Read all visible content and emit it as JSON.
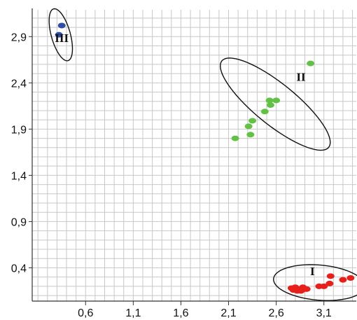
{
  "chart_data": {
    "type": "scatter",
    "title": "",
    "xlabel": "",
    "ylabel": "",
    "xlim": [
      0.04,
      3.44
    ],
    "ylim": [
      0.04,
      3.19
    ],
    "x_ticks": [
      "0,6",
      "1,1",
      "1,6",
      "2,1",
      "2,6",
      "3,1"
    ],
    "x_tick_values": [
      0.6,
      1.1,
      1.6,
      2.1,
      2.6,
      3.1
    ],
    "y_ticks": [
      "0,4",
      "0,9",
      "1,4",
      "1,9",
      "2,4",
      "2,9"
    ],
    "y_tick_values": [
      0.4,
      0.9,
      1.4,
      1.9,
      2.4,
      2.9
    ],
    "minor_grid_step": 0.1,
    "grid": true,
    "series": [
      {
        "name": "I",
        "color": "#e8201c",
        "points": [
          [
            2.76,
            0.18
          ],
          [
            2.78,
            0.16
          ],
          [
            2.8,
            0.19
          ],
          [
            2.82,
            0.15
          ],
          [
            2.84,
            0.17
          ],
          [
            2.86,
            0.15
          ],
          [
            2.88,
            0.19
          ],
          [
            2.9,
            0.17
          ],
          [
            2.92,
            0.17
          ],
          [
            3.05,
            0.2
          ],
          [
            3.1,
            0.2
          ],
          [
            3.16,
            0.23
          ],
          [
            3.17,
            0.31
          ],
          [
            3.3,
            0.27
          ],
          [
            3.38,
            0.29
          ]
        ]
      },
      {
        "name": "II",
        "color": "#63c246",
        "points": [
          [
            2.17,
            1.8
          ],
          [
            2.33,
            1.84
          ],
          [
            2.31,
            1.93
          ],
          [
            2.35,
            1.99
          ],
          [
            2.48,
            2.09
          ],
          [
            2.54,
            2.16
          ],
          [
            2.53,
            2.21
          ],
          [
            2.6,
            2.21
          ],
          [
            2.96,
            2.61
          ]
        ]
      },
      {
        "name": "III",
        "color": "#2f4fa3",
        "points": [
          [
            0.35,
            3.02
          ],
          [
            0.32,
            2.92
          ]
        ]
      }
    ],
    "clusters": [
      {
        "label": "I",
        "ellipse": {
          "cx": 3.05,
          "cy": 0.24,
          "rx": 0.48,
          "ry": 0.19,
          "angle": -5
        },
        "label_at": [
          2.98,
          0.32
        ]
      },
      {
        "label": "II",
        "ellipse": {
          "cx": 2.59,
          "cy": 2.17,
          "rx": 0.73,
          "ry": 0.22,
          "angle": -40
        },
        "label_at": [
          2.86,
          2.42
        ]
      },
      {
        "label": "III",
        "ellipse": {
          "cx": 0.34,
          "cy": 2.92,
          "rx": 0.29,
          "ry": 0.1,
          "angle": -75
        },
        "label_at": [
          0.35,
          2.84
        ]
      }
    ]
  }
}
